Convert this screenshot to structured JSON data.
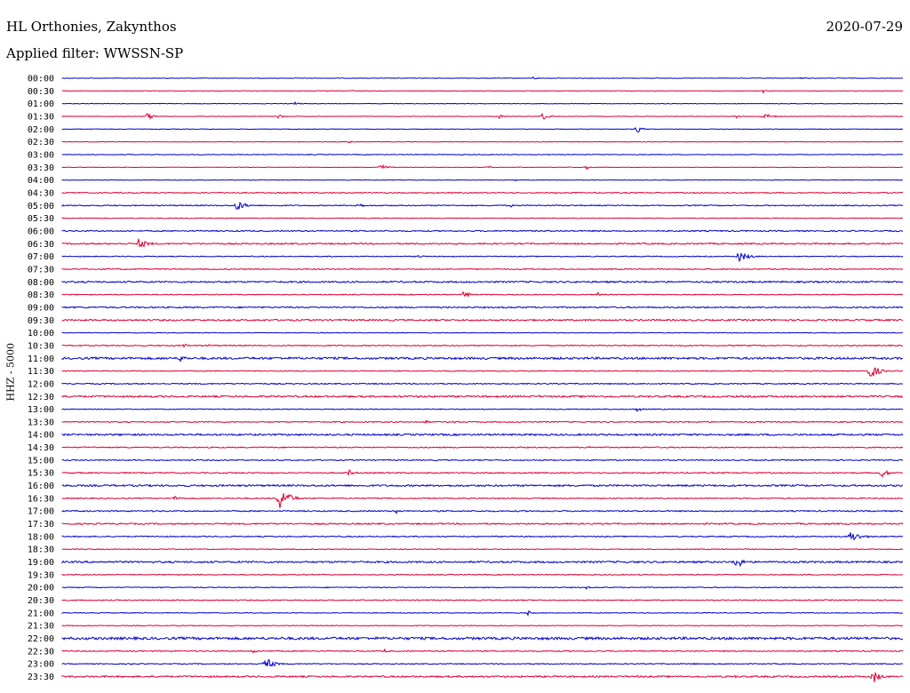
{
  "header": {
    "station": "HL Orthonies, Zakynthos",
    "date": "2020-07-29",
    "filter": "Applied filter: WWSSN-SP",
    "ylabel": "HHZ - 5000"
  },
  "colors": {
    "even_row": "#0000cc",
    "odd_row": "#dd0033",
    "background": "#ffffff"
  },
  "chart_data": {
    "type": "line",
    "subtype": "helicorder",
    "rows": [
      "00:00",
      "00:30",
      "01:00",
      "01:30",
      "02:00",
      "02:30",
      "03:00",
      "03:30",
      "04:00",
      "04:30",
      "05:00",
      "05:30",
      "06:00",
      "06:30",
      "07:00",
      "07:30",
      "08:00",
      "08:30",
      "09:00",
      "09:30",
      "10:00",
      "10:30",
      "11:00",
      "11:30",
      "12:00",
      "12:30",
      "13:00",
      "13:30",
      "14:00",
      "14:30",
      "15:00",
      "15:30",
      "16:00",
      "16:30",
      "17:00",
      "17:30",
      "18:00",
      "18:30",
      "19:00",
      "19:30",
      "20:00",
      "20:30",
      "21:00",
      "21:30",
      "22:00",
      "22:30",
      "23:00",
      "23:30"
    ],
    "x_unit": "minutes",
    "x_range": [
      0,
      30
    ],
    "row_colors": [
      "blue",
      "red"
    ],
    "noise_levels": [
      0.3,
      0.3,
      0.3,
      0.3,
      0.3,
      0.3,
      0.4,
      0.3,
      0.3,
      0.6,
      0.6,
      0.4,
      0.7,
      0.8,
      0.5,
      0.6,
      0.9,
      0.5,
      0.8,
      0.9,
      0.4,
      0.6,
      1.2,
      0.5,
      0.6,
      1.0,
      0.5,
      0.6,
      1.0,
      0.6,
      0.6,
      0.7,
      1.0,
      0.6,
      0.7,
      0.8,
      0.6,
      0.5,
      1.0,
      0.5,
      0.5,
      0.6,
      0.4,
      0.4,
      1.4,
      0.6,
      0.5,
      0.9
    ],
    "events": [
      {
        "row": 0,
        "min": 16.8,
        "amp": 2,
        "dur": 0.4
      },
      {
        "row": 0,
        "min": 26.3,
        "amp": 2,
        "dur": 0.4
      },
      {
        "row": 1,
        "min": 10.3,
        "amp": 2,
        "dur": 0.3
      },
      {
        "row": 1,
        "min": 25.0,
        "amp": 3,
        "dur": 0.3
      },
      {
        "row": 2,
        "min": 8.3,
        "amp": 2,
        "dur": 0.5
      },
      {
        "row": 3,
        "min": 3.0,
        "amp": 5,
        "dur": 0.6
      },
      {
        "row": 3,
        "min": 7.7,
        "amp": 3,
        "dur": 0.5
      },
      {
        "row": 3,
        "min": 15.6,
        "amp": 3,
        "dur": 0.4
      },
      {
        "row": 3,
        "min": 17.1,
        "amp": 5,
        "dur": 0.6
      },
      {
        "row": 3,
        "min": 24.0,
        "amp": 3,
        "dur": 0.4
      },
      {
        "row": 3,
        "min": 25.0,
        "amp": 4,
        "dur": 0.8
      },
      {
        "row": 4,
        "min": 20.5,
        "amp": 6,
        "dur": 0.4
      },
      {
        "row": 5,
        "min": 10.2,
        "amp": 2,
        "dur": 0.5
      },
      {
        "row": 7,
        "min": 11.3,
        "amp": 5,
        "dur": 0.6
      },
      {
        "row": 7,
        "min": 15.2,
        "amp": 3,
        "dur": 0.2
      },
      {
        "row": 7,
        "min": 18.7,
        "amp": 3,
        "dur": 0.3
      },
      {
        "row": 8,
        "min": 16.1,
        "amp": 2,
        "dur": 0.3
      },
      {
        "row": 10,
        "min": 6.2,
        "amp": 7,
        "dur": 0.8
      },
      {
        "row": 10,
        "min": 10.5,
        "amp": 4,
        "dur": 0.6
      },
      {
        "row": 10,
        "min": 16.0,
        "amp": 2,
        "dur": 0.3
      },
      {
        "row": 13,
        "min": 2.7,
        "amp": 6,
        "dur": 1.0
      },
      {
        "row": 13,
        "min": 10.5,
        "amp": 2,
        "dur": 0.5
      },
      {
        "row": 14,
        "min": 12.7,
        "amp": 3,
        "dur": 0.4
      },
      {
        "row": 14,
        "min": 24.1,
        "amp": 7,
        "dur": 0.9
      },
      {
        "row": 17,
        "min": 14.3,
        "amp": 5,
        "dur": 0.6
      },
      {
        "row": 17,
        "min": 19.1,
        "amp": 4,
        "dur": 0.3
      },
      {
        "row": 21,
        "min": 4.3,
        "amp": 3,
        "dur": 0.5
      },
      {
        "row": 21,
        "min": 5.2,
        "amp": 3,
        "dur": 0.3
      },
      {
        "row": 22,
        "min": 4.2,
        "amp": 5,
        "dur": 0.6
      },
      {
        "row": 23,
        "min": 28.8,
        "amp": 10,
        "dur": 0.8
      },
      {
        "row": 26,
        "min": 20.5,
        "amp": 3,
        "dur": 0.6
      },
      {
        "row": 27,
        "min": 12.9,
        "amp": 3,
        "dur": 0.5
      },
      {
        "row": 27,
        "min": 13.9,
        "amp": 3,
        "dur": 0.5
      },
      {
        "row": 29,
        "min": 18.8,
        "amp": 3,
        "dur": 0.5
      },
      {
        "row": 31,
        "min": 10.2,
        "amp": 4,
        "dur": 0.6
      },
      {
        "row": 31,
        "min": 16.7,
        "amp": 2,
        "dur": 0.3
      },
      {
        "row": 31,
        "min": 29.2,
        "amp": 6,
        "dur": 0.7
      },
      {
        "row": 33,
        "min": 4.0,
        "amp": 4,
        "dur": 0.5
      },
      {
        "row": 33,
        "min": 7.7,
        "amp": 16,
        "dur": 0.9
      },
      {
        "row": 34,
        "min": 11.9,
        "amp": 3,
        "dur": 0.4
      },
      {
        "row": 36,
        "min": 28.1,
        "amp": 7,
        "dur": 1.0
      },
      {
        "row": 38,
        "min": 24.0,
        "amp": 14,
        "dur": 0.5
      },
      {
        "row": 40,
        "min": 18.7,
        "amp": 2,
        "dur": 0.4
      },
      {
        "row": 42,
        "min": 16.6,
        "amp": 3,
        "dur": 0.4
      },
      {
        "row": 45,
        "min": 6.8,
        "amp": 3,
        "dur": 0.5
      },
      {
        "row": 45,
        "min": 11.5,
        "amp": 3,
        "dur": 0.3
      },
      {
        "row": 46,
        "min": 7.2,
        "amp": 9,
        "dur": 0.8
      },
      {
        "row": 46,
        "min": 2.4,
        "amp": 2,
        "dur": 0.4
      },
      {
        "row": 46,
        "min": 22.5,
        "amp": 2,
        "dur": 0.3
      },
      {
        "row": 47,
        "min": 20.5,
        "amp": 2,
        "dur": 0.3
      },
      {
        "row": 47,
        "min": 24.0,
        "amp": 2,
        "dur": 0.3
      },
      {
        "row": 47,
        "min": 28.9,
        "amp": 10,
        "dur": 0.6
      }
    ]
  }
}
